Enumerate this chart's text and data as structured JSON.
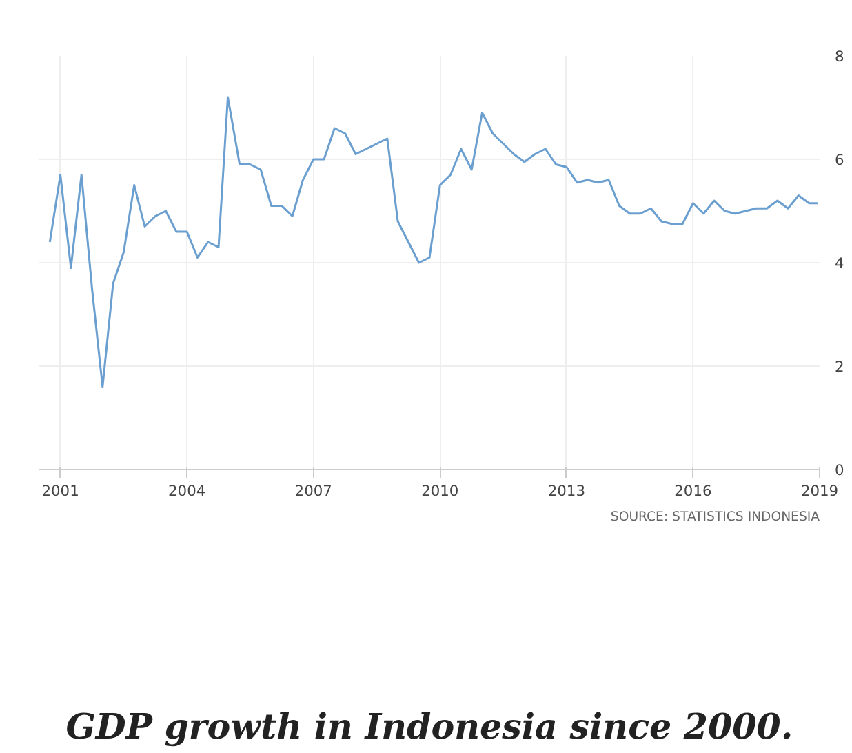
{
  "chart_data": {
    "type": "line",
    "title": "GDP growth in Indonesia since 2000.",
    "annotations": [
      "SOURCE: STATISTICS INDONESIA"
    ],
    "x": [
      2000.75,
      2001.0,
      2001.25,
      2001.5,
      2001.75,
      2002.0,
      2002.25,
      2002.5,
      2002.75,
      2003.0,
      2003.25,
      2003.5,
      2003.75,
      2004.0,
      2004.25,
      2004.5,
      2004.75,
      2004.97,
      2005.25,
      2005.5,
      2005.75,
      2006.0,
      2006.25,
      2006.5,
      2006.75,
      2007.0,
      2007.25,
      2007.5,
      2007.75,
      2008.0,
      2008.25,
      2008.5,
      2008.75,
      2009.0,
      2009.25,
      2009.5,
      2009.75,
      2010.0,
      2010.25,
      2010.5,
      2010.75,
      2011.0,
      2011.25,
      2011.5,
      2011.75,
      2012.0,
      2012.25,
      2012.5,
      2012.75,
      2013.0,
      2013.25,
      2013.5,
      2013.75,
      2014.0,
      2014.25,
      2014.5,
      2014.75,
      2015.0,
      2015.25,
      2015.5,
      2015.75,
      2016.0,
      2016.25,
      2016.5,
      2016.75,
      2017.0,
      2017.25,
      2017.5,
      2017.75,
      2018.0,
      2018.25,
      2018.5,
      2018.75,
      2018.95
    ],
    "series": [
      {
        "color": "#6b9fd0",
        "values": [
          4.4,
          5.7,
          3.9,
          5.7,
          3.5,
          1.6,
          3.6,
          4.2,
          5.5,
          4.7,
          4.9,
          5.0,
          4.6,
          4.6,
          4.1,
          4.4,
          4.3,
          7.2,
          5.9,
          5.9,
          5.8,
          5.1,
          5.1,
          4.9,
          5.6,
          6.0,
          6.0,
          6.6,
          6.5,
          6.1,
          6.2,
          6.3,
          6.4,
          4.8,
          4.4,
          4.0,
          4.1,
          5.5,
          5.7,
          6.2,
          5.8,
          6.9,
          6.5,
          6.3,
          6.1,
          5.95,
          6.1,
          6.2,
          5.9,
          5.85,
          5.55,
          5.6,
          5.55,
          5.6,
          5.1,
          4.95,
          4.95,
          5.05,
          4.8,
          4.75,
          4.75,
          5.15,
          4.95,
          5.2,
          5.0,
          4.95,
          5.0,
          5.05,
          5.05,
          5.2,
          5.05,
          5.3,
          5.15,
          5.15
        ]
      }
    ],
    "xlim": [
      2000.5,
      2019
    ],
    "xticks": [
      2001,
      2004,
      2007,
      2010,
      2013,
      2016,
      2019
    ],
    "ylim": [
      0,
      8
    ],
    "yticks": [
      0,
      2,
      4,
      6,
      8
    ],
    "grid": true,
    "marker": "none",
    "line_style": "solid"
  }
}
